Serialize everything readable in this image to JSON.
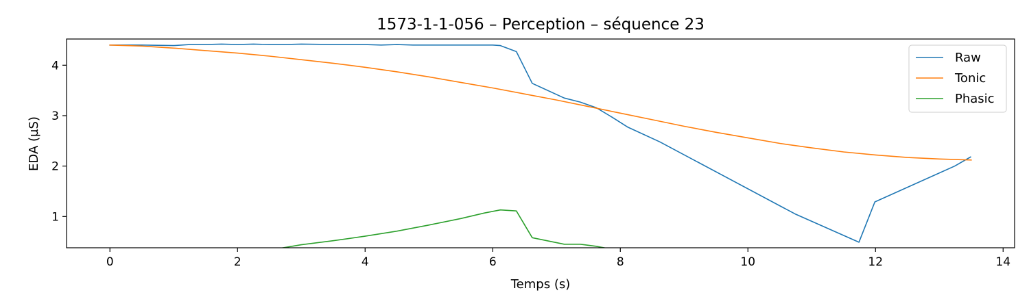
{
  "chart_data": {
    "type": "line",
    "title": "1573-1-1-056 – Perception – séquence 23",
    "xlabel": "Temps (s)",
    "ylabel": "EDA (µS)",
    "xlim": [
      -0.68,
      14.18
    ],
    "ylim": [
      0.38,
      4.52
    ],
    "xticks": [
      0,
      2,
      4,
      6,
      8,
      10,
      12,
      14
    ],
    "yticks": [
      1,
      2,
      3,
      4
    ],
    "grid": false,
    "legend_position": "top-right",
    "series": [
      {
        "name": "Raw",
        "color": "#1f77b4",
        "x": [
          0,
          0.5,
          1.0,
          1.25,
          1.5,
          1.75,
          2.0,
          2.25,
          2.5,
          2.75,
          3.0,
          3.5,
          4.0,
          4.25,
          4.5,
          4.75,
          5.0,
          5.5,
          5.75,
          6.0,
          6.12,
          6.37,
          6.62,
          7.12,
          7.37,
          7.62,
          7.87,
          8.12,
          8.62,
          10.74,
          11.74,
          11.99,
          13.24,
          13.49
        ],
        "values": [
          4.4,
          4.4,
          4.39,
          4.41,
          4.41,
          4.42,
          4.41,
          4.42,
          4.41,
          4.41,
          4.42,
          4.41,
          4.41,
          4.4,
          4.41,
          4.4,
          4.4,
          4.4,
          4.4,
          4.4,
          4.39,
          4.27,
          3.64,
          3.35,
          3.27,
          3.16,
          2.97,
          2.77,
          2.48,
          1.05,
          0.49,
          1.29,
          2.0,
          2.18
        ]
      },
      {
        "name": "Tonic",
        "color": "#ff7f0e",
        "x": [
          0,
          0.5,
          1.0,
          1.5,
          2.0,
          2.5,
          3.0,
          3.5,
          4.0,
          4.5,
          5.0,
          5.5,
          6.0,
          6.5,
          7.0,
          7.5,
          8.0,
          8.5,
          9.0,
          9.5,
          10.0,
          10.5,
          11.0,
          11.5,
          12.0,
          12.5,
          13.0,
          13.5
        ],
        "values": [
          4.4,
          4.38,
          4.34,
          4.29,
          4.24,
          4.18,
          4.11,
          4.04,
          3.96,
          3.87,
          3.77,
          3.66,
          3.55,
          3.43,
          3.31,
          3.18,
          3.05,
          2.92,
          2.79,
          2.67,
          2.56,
          2.45,
          2.36,
          2.28,
          2.22,
          2.17,
          2.14,
          2.12
        ]
      },
      {
        "name": "Phasic",
        "color": "#2ca02c",
        "x": [
          0,
          0.5,
          1.0,
          1.5,
          2.0,
          2.5,
          2.62,
          3.0,
          3.5,
          4.0,
          4.5,
          5.0,
          5.5,
          5.87,
          6.12,
          6.37,
          6.62,
          7.12,
          7.37,
          7.62,
          7.87
        ],
        "values": [
          0.0,
          0.0,
          0.0,
          0.0,
          0.0,
          0.0,
          0.36,
          0.44,
          0.52,
          0.61,
          0.71,
          0.83,
          0.96,
          1.07,
          1.13,
          1.11,
          0.58,
          0.45,
          0.45,
          0.41,
          0.35
        ]
      }
    ]
  }
}
